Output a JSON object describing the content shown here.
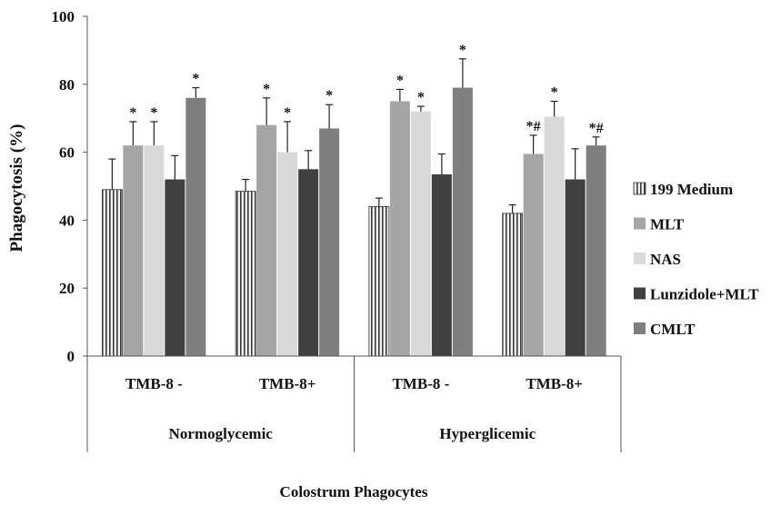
{
  "chart_data": {
    "type": "bar",
    "ylabel": "Phagocytosis (%)",
    "xlabel": "Colostrum Phagocytes",
    "ylim": [
      0,
      100
    ],
    "yticks": [
      0,
      20,
      40,
      60,
      80,
      100
    ],
    "grid": false,
    "legend_position": "right",
    "groups": [
      {
        "label": "Normoglycemic",
        "categories": [
          "TMB-8 -",
          "TMB-8+"
        ]
      },
      {
        "label": "Hyperglicemic",
        "categories": [
          "TMB-8 -",
          "TMB-8+"
        ]
      }
    ],
    "categories": [
      "TMB-8 -",
      "TMB-8+",
      "TMB-8 -",
      "TMB-8+"
    ],
    "series": [
      {
        "name": "199 Medium",
        "color": "#e6e6e6",
        "pattern": "vertical-stripes",
        "values": [
          49,
          48.5,
          44,
          42
        ],
        "errors": [
          9,
          3.5,
          2.5,
          2.5
        ],
        "annotations": [
          "",
          "",
          "",
          ""
        ]
      },
      {
        "name": "MLT",
        "color": "#a5a5a5",
        "values": [
          62,
          68,
          75,
          59.5
        ],
        "errors": [
          7,
          8,
          3.5,
          5.5
        ],
        "annotations": [
          "*",
          "*",
          "*",
          "*#"
        ]
      },
      {
        "name": "NAS",
        "color": "#d9d9d9",
        "values": [
          62,
          60,
          72,
          70.5
        ],
        "errors": [
          7,
          9,
          1.5,
          4.5
        ],
        "annotations": [
          "*",
          "*",
          "*",
          "*"
        ]
      },
      {
        "name": "Lunzidole+MLT",
        "color": "#404040",
        "values": [
          52,
          55,
          53.5,
          52
        ],
        "errors": [
          7,
          5.5,
          6,
          9
        ],
        "annotations": [
          "",
          "",
          "",
          ""
        ]
      },
      {
        "name": "CMLT",
        "color": "#7f7f7f",
        "values": [
          76,
          67,
          79,
          62
        ],
        "errors": [
          3,
          7,
          8.5,
          2.5
        ],
        "annotations": [
          "*",
          "*",
          "*",
          "*#"
        ]
      }
    ]
  }
}
